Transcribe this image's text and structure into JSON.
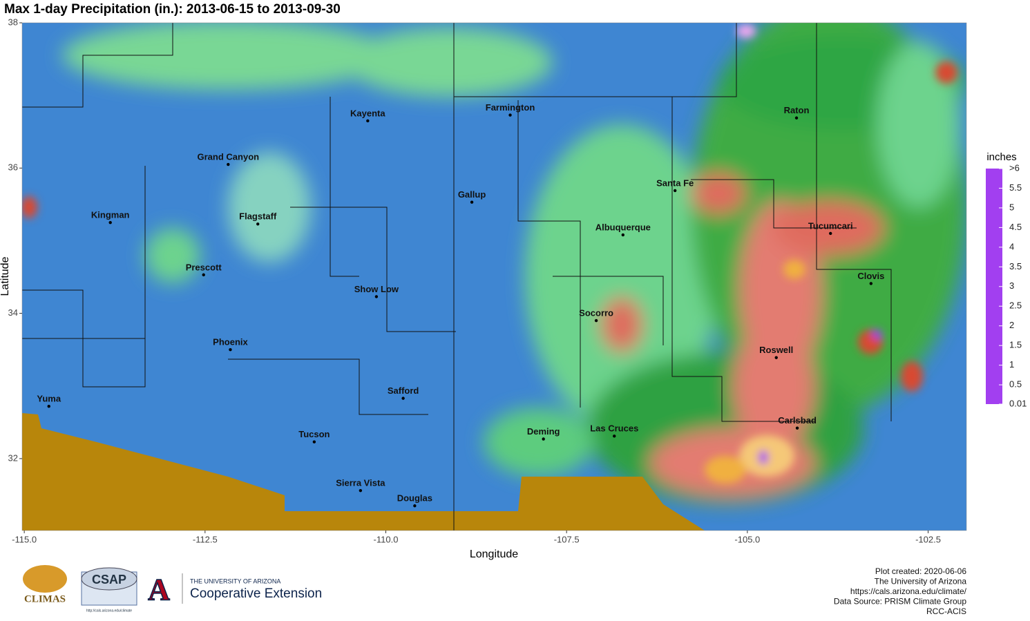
{
  "map": {
    "title": "Max 1-day Precipitation (in.): 2013-06-15 to 2013-09-30",
    "xlabel": "Longitude",
    "ylabel": "Latitude",
    "xlim": [
      -115.03,
      -101.97
    ],
    "ylim": [
      31.01,
      38.0
    ],
    "xticks": [
      {
        "value": -115,
        "label": "-115.0"
      },
      -112.5,
      {
        "value": -110,
        "label": "-110.0"
      },
      -107.5,
      {
        "value": -105,
        "label": "-105.0"
      },
      -102.5
    ],
    "yticks": [
      32,
      34,
      36,
      38
    ],
    "cities": [
      {
        "name": "Kayenta",
        "lon": -110.25,
        "lat": 36.65
      },
      {
        "name": "Farmington",
        "lon": -108.28,
        "lat": 36.73
      },
      {
        "name": "Grand Canyon",
        "lon": -112.18,
        "lat": 36.05
      },
      {
        "name": "Kingman",
        "lon": -113.81,
        "lat": 35.25
      },
      {
        "name": "Flagstaff",
        "lon": -111.77,
        "lat": 35.23
      },
      {
        "name": "Gallup",
        "lon": -108.81,
        "lat": 35.53
      },
      {
        "name": "Santa Fe",
        "lon": -106.0,
        "lat": 35.69
      },
      {
        "name": "Albuquerque",
        "lon": -106.72,
        "lat": 35.08
      },
      {
        "name": "Tucumcari",
        "lon": -103.85,
        "lat": 35.1
      },
      {
        "name": "Raton",
        "lon": -104.32,
        "lat": 36.69
      },
      {
        "name": "Prescott",
        "lon": -112.52,
        "lat": 34.53
      },
      {
        "name": "Show Low",
        "lon": -110.13,
        "lat": 34.23
      },
      {
        "name": "Clovis",
        "lon": -103.29,
        "lat": 34.41
      },
      {
        "name": "Socorro",
        "lon": -107.09,
        "lat": 33.9
      },
      {
        "name": "Phoenix",
        "lon": -112.15,
        "lat": 33.5
      },
      {
        "name": "Roswell",
        "lon": -104.6,
        "lat": 33.39
      },
      {
        "name": "Safford",
        "lon": -109.76,
        "lat": 32.83
      },
      {
        "name": "Yuma",
        "lon": -114.66,
        "lat": 32.72
      },
      {
        "name": "Tucson",
        "lon": -110.99,
        "lat": 32.23
      },
      {
        "name": "Deming",
        "lon": -107.82,
        "lat": 32.27
      },
      {
        "name": "Las Cruces",
        "lon": -106.84,
        "lat": 32.31
      },
      {
        "name": "Carlsbad",
        "lon": -104.31,
        "lat": 32.42
      },
      {
        "name": "Sierra Vista",
        "lon": -110.35,
        "lat": 31.56
      },
      {
        "name": "Douglas",
        "lon": -109.6,
        "lat": 31.35
      }
    ],
    "legend": {
      "title": "inches",
      "ticks": [
        {
          "value": 6,
          "label": ">6"
        },
        5.5,
        5,
        4.5,
        4,
        3.5,
        3,
        2.5,
        2,
        1.5,
        1,
        0.5,
        0.01
      ],
      "colors": [
        "#a23ff0",
        "#f0a8f0",
        "#e89a18",
        "#f0b040",
        "#f5c878",
        "#e8903a",
        "#d84a30",
        "#ec7c6c",
        "#1f9a2a",
        "#5ad46c",
        "#86e6a0",
        "#3a7fd4",
        "#a9daf0"
      ]
    }
  },
  "footer": {
    "lines": [
      "Plot created: 2020-06-06",
      "The University of Arizona",
      "https://cals.arizona.edu/climate/",
      "Data Source: PRISM Climate Group",
      "RCC-ACIS"
    ],
    "logos": {
      "climas": "CLIMAS",
      "csap": "CSAP",
      "csap_url": "http://cals.arizona.edu/climate",
      "ua": "THE UNIVERSITY OF ARIZONA",
      "extension": "Cooperative Extension"
    }
  }
}
